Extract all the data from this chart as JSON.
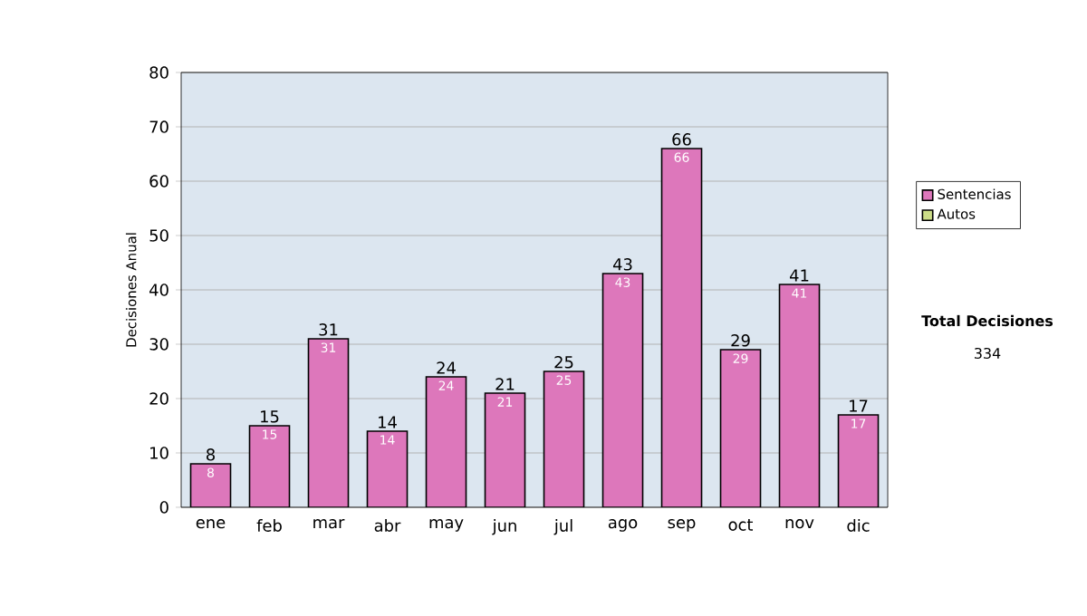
{
  "chart_data": {
    "type": "bar",
    "stacked": true,
    "ylabel": "Decisiones Anual",
    "categories": [
      "ene",
      "feb",
      "mar",
      "abr",
      "may",
      "jun",
      "jul",
      "ago",
      "sep",
      "oct",
      "nov",
      "dic"
    ],
    "series": [
      {
        "name": "Sentencias",
        "color": "#dd77bb",
        "values": [
          8,
          15,
          31,
          14,
          24,
          21,
          25,
          43,
          66,
          29,
          41,
          17
        ],
        "value_labels": [
          "8",
          "15",
          "31",
          "14",
          "24",
          "21",
          "25",
          "43",
          "66",
          "29",
          "41",
          "17"
        ]
      },
      {
        "name": "Autos",
        "color": "#ccdd88",
        "values": [
          0,
          0,
          0,
          0,
          0,
          0,
          0,
          0,
          0,
          0,
          0,
          0
        ]
      }
    ],
    "totals": [
      "8",
      "15",
      "31",
      "14",
      "24",
      "21",
      "25",
      "43",
      "66",
      "29",
      "41",
      "17"
    ],
    "ylim": [
      0,
      80
    ],
    "yticks": [
      0,
      10,
      20,
      30,
      40,
      50,
      60,
      70,
      80
    ],
    "grid": "y",
    "legend": "right",
    "annotations": [
      "Total Decisiones",
      "334"
    ]
  }
}
